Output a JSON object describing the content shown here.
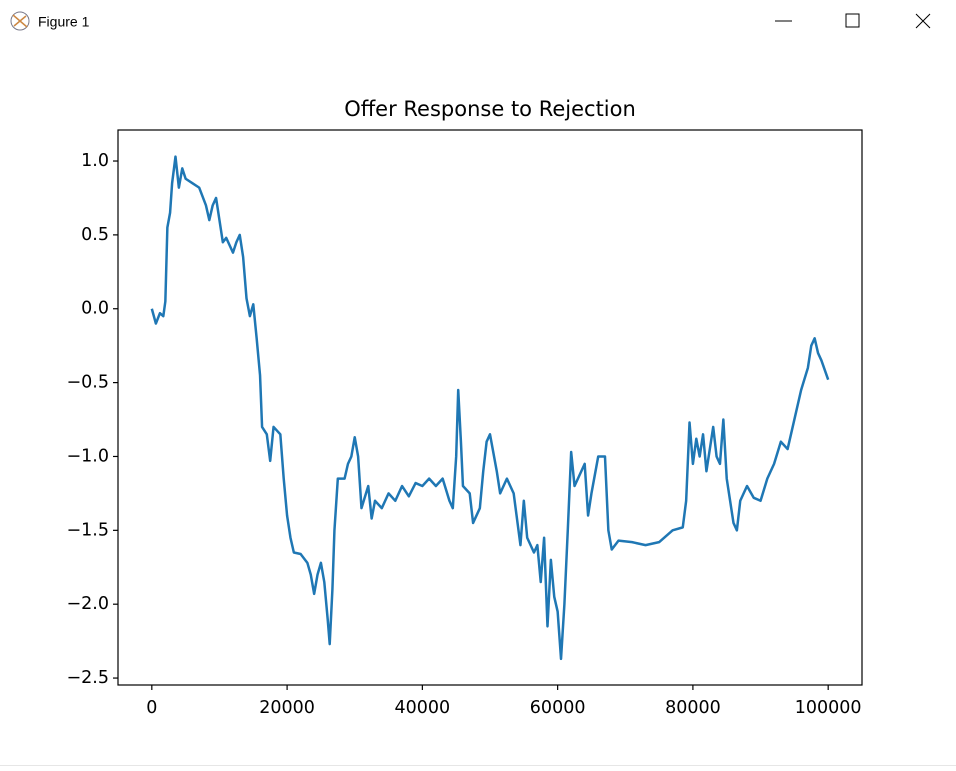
{
  "window": {
    "title": "Figure 1"
  },
  "chart_data": {
    "type": "line",
    "title": "Offer Response to Rejection",
    "color": "#1f77b4",
    "x": [
      0,
      600,
      1200,
      1700,
      2000,
      2300,
      2700,
      3000,
      3500,
      4000,
      4500,
      5000,
      6000,
      7000,
      8000,
      8500,
      9000,
      9500,
      10000,
      10500,
      11000,
      12000,
      12500,
      13000,
      13500,
      14000,
      14500,
      15000,
      15500,
      16000,
      16300,
      17000,
      17500,
      18000,
      19000,
      19500,
      20000,
      20500,
      21000,
      22000,
      23000,
      23500,
      24000,
      24500,
      25000,
      25500,
      26000,
      26300,
      26700,
      27000,
      27500,
      28500,
      29000,
      29500,
      30000,
      30500,
      31000,
      32000,
      32500,
      33000,
      34000,
      35000,
      36000,
      37000,
      38000,
      39000,
      40000,
      41000,
      42000,
      43000,
      44000,
      44500,
      45000,
      45300,
      45700,
      46000,
      47000,
      47500,
      48500,
      49000,
      49500,
      50000,
      51000,
      51500,
      52500,
      53500,
      54500,
      55000,
      55500,
      56500,
      57000,
      57500,
      58000,
      58500,
      59000,
      59500,
      60000,
      60500,
      61000,
      61500,
      62000,
      62500,
      63000,
      64000,
      64500,
      65000,
      66000,
      67000,
      67500,
      68000,
      69000,
      71000,
      73000,
      75000,
      77000,
      78500,
      79000,
      79500,
      80000,
      80500,
      81000,
      81500,
      82000,
      83000,
      83500,
      84000,
      84500,
      85000,
      86000,
      86500,
      87000,
      88000,
      89000,
      90000,
      91000,
      92000,
      93000,
      94000,
      95000,
      96000,
      97000,
      97500,
      98000,
      98500,
      99000,
      100000
    ],
    "values": [
      0,
      -0.1,
      -0.03,
      -0.05,
      0.05,
      0.55,
      0.65,
      0.85,
      1.03,
      0.82,
      0.95,
      0.88,
      0.85,
      0.82,
      0.7,
      0.6,
      0.7,
      0.75,
      0.6,
      0.45,
      0.48,
      0.38,
      0.45,
      0.5,
      0.35,
      0.07,
      -0.05,
      0.03,
      -0.2,
      -0.45,
      -0.8,
      -0.85,
      -1.03,
      -0.8,
      -0.85,
      -1.15,
      -1.4,
      -1.55,
      -1.65,
      -1.66,
      -1.72,
      -1.8,
      -1.93,
      -1.8,
      -1.72,
      -1.85,
      -2.1,
      -2.27,
      -1.9,
      -1.5,
      -1.15,
      -1.15,
      -1.05,
      -1.0,
      -0.87,
      -1.0,
      -1.35,
      -1.2,
      -1.42,
      -1.3,
      -1.35,
      -1.25,
      -1.3,
      -1.2,
      -1.27,
      -1.18,
      -1.2,
      -1.15,
      -1.2,
      -1.15,
      -1.3,
      -1.35,
      -1.0,
      -0.55,
      -0.9,
      -1.2,
      -1.25,
      -1.45,
      -1.35,
      -1.1,
      -0.9,
      -0.85,
      -1.1,
      -1.25,
      -1.15,
      -1.25,
      -1.6,
      -1.3,
      -1.55,
      -1.65,
      -1.6,
      -1.85,
      -1.55,
      -2.15,
      -1.7,
      -1.95,
      -2.05,
      -2.37,
      -2.0,
      -1.5,
      -0.97,
      -1.2,
      -1.15,
      -1.05,
      -1.4,
      -1.25,
      -1.0,
      -1.0,
      -1.5,
      -1.63,
      -1.57,
      -1.58,
      -1.6,
      -1.58,
      -1.5,
      -1.48,
      -1.3,
      -0.77,
      -1.05,
      -0.88,
      -1.0,
      -0.85,
      -1.1,
      -0.8,
      -1.0,
      -1.05,
      -0.75,
      -1.15,
      -1.45,
      -1.5,
      -1.3,
      -1.2,
      -1.28,
      -1.3,
      -1.15,
      -1.05,
      -0.9,
      -0.95,
      -0.75,
      -0.55,
      -0.4,
      -0.25,
      -0.2,
      -0.3,
      -0.35,
      -0.48
    ],
    "xlim": [
      -5000,
      105000
    ],
    "xticks": [
      0,
      20000,
      40000,
      60000,
      80000,
      100000
    ],
    "ylim": [
      -2.547,
      1.21
    ],
    "yticks": [
      {
        "value": -2.5,
        "label": "−2.5"
      },
      {
        "value": -2,
        "label": "−2.0"
      },
      {
        "value": -1.5,
        "label": "−1.5"
      },
      {
        "value": -1,
        "label": "−1.0"
      },
      {
        "value": -0.5,
        "label": "−0.5"
      },
      {
        "value": 0,
        "label": "0.0"
      },
      0.5,
      {
        "value": 1,
        "label": "1.0"
      }
    ]
  }
}
